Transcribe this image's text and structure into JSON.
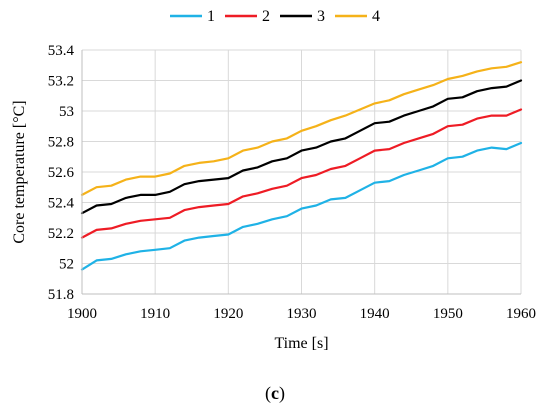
{
  "chart_data": {
    "type": "line",
    "xlabel": "Time [s]",
    "ylabel": "Core temperature [°C]",
    "xlim": [
      1900,
      1960
    ],
    "ylim": [
      51.8,
      53.4
    ],
    "xticks": [
      1900,
      1910,
      1920,
      1930,
      1940,
      1950,
      1960
    ],
    "yticks": [
      51.8,
      52,
      52.2,
      52.4,
      52.6,
      52.8,
      53,
      53.2,
      53.4
    ],
    "ytick_labels": [
      "51.8",
      "52",
      "52.2",
      "52.4",
      "52.6",
      "52.8",
      "53",
      "53.2",
      "53.4"
    ],
    "grid": "horizontal and vertical",
    "legend_position": "top",
    "x": [
      1900,
      1902,
      1904,
      1906,
      1908,
      1910,
      1912,
      1914,
      1916,
      1918,
      1920,
      1922,
      1924,
      1926,
      1928,
      1930,
      1932,
      1934,
      1936,
      1938,
      1940,
      1942,
      1944,
      1946,
      1948,
      1950,
      1952,
      1954,
      1956,
      1958,
      1960
    ],
    "series": [
      {
        "name": "1",
        "color": "#1fb2e6",
        "values": [
          51.96,
          52.02,
          52.03,
          52.06,
          52.08,
          52.09,
          52.1,
          52.15,
          52.17,
          52.18,
          52.19,
          52.24,
          52.26,
          52.29,
          52.31,
          52.36,
          52.38,
          52.42,
          52.43,
          52.48,
          52.53,
          52.54,
          52.58,
          52.61,
          52.64,
          52.69,
          52.7,
          52.74,
          52.76,
          52.75,
          52.79
        ]
      },
      {
        "name": "2",
        "color": "#ee1c25",
        "values": [
          52.17,
          52.22,
          52.23,
          52.26,
          52.28,
          52.29,
          52.3,
          52.35,
          52.37,
          52.38,
          52.39,
          52.44,
          52.46,
          52.49,
          52.51,
          52.56,
          52.58,
          52.62,
          52.64,
          52.69,
          52.74,
          52.75,
          52.79,
          52.82,
          52.85,
          52.9,
          52.91,
          52.95,
          52.97,
          52.97,
          53.01
        ]
      },
      {
        "name": "3",
        "color": "#000000",
        "values": [
          52.33,
          52.38,
          52.39,
          52.43,
          52.45,
          52.45,
          52.47,
          52.52,
          52.54,
          52.55,
          52.56,
          52.61,
          52.63,
          52.67,
          52.69,
          52.74,
          52.76,
          52.8,
          52.82,
          52.87,
          52.92,
          52.93,
          52.97,
          53.0,
          53.03,
          53.08,
          53.09,
          53.13,
          53.15,
          53.16,
          53.2
        ]
      },
      {
        "name": "4",
        "color": "#f5b219",
        "values": [
          52.45,
          52.5,
          52.51,
          52.55,
          52.57,
          52.57,
          52.59,
          52.64,
          52.66,
          52.67,
          52.69,
          52.74,
          52.76,
          52.8,
          52.82,
          52.87,
          52.9,
          52.94,
          52.97,
          53.01,
          53.05,
          53.07,
          53.11,
          53.14,
          53.17,
          53.21,
          53.23,
          53.26,
          53.28,
          53.29,
          53.32
        ]
      }
    ]
  },
  "caption": {
    "open": "(",
    "label": "c",
    "close": ")"
  }
}
